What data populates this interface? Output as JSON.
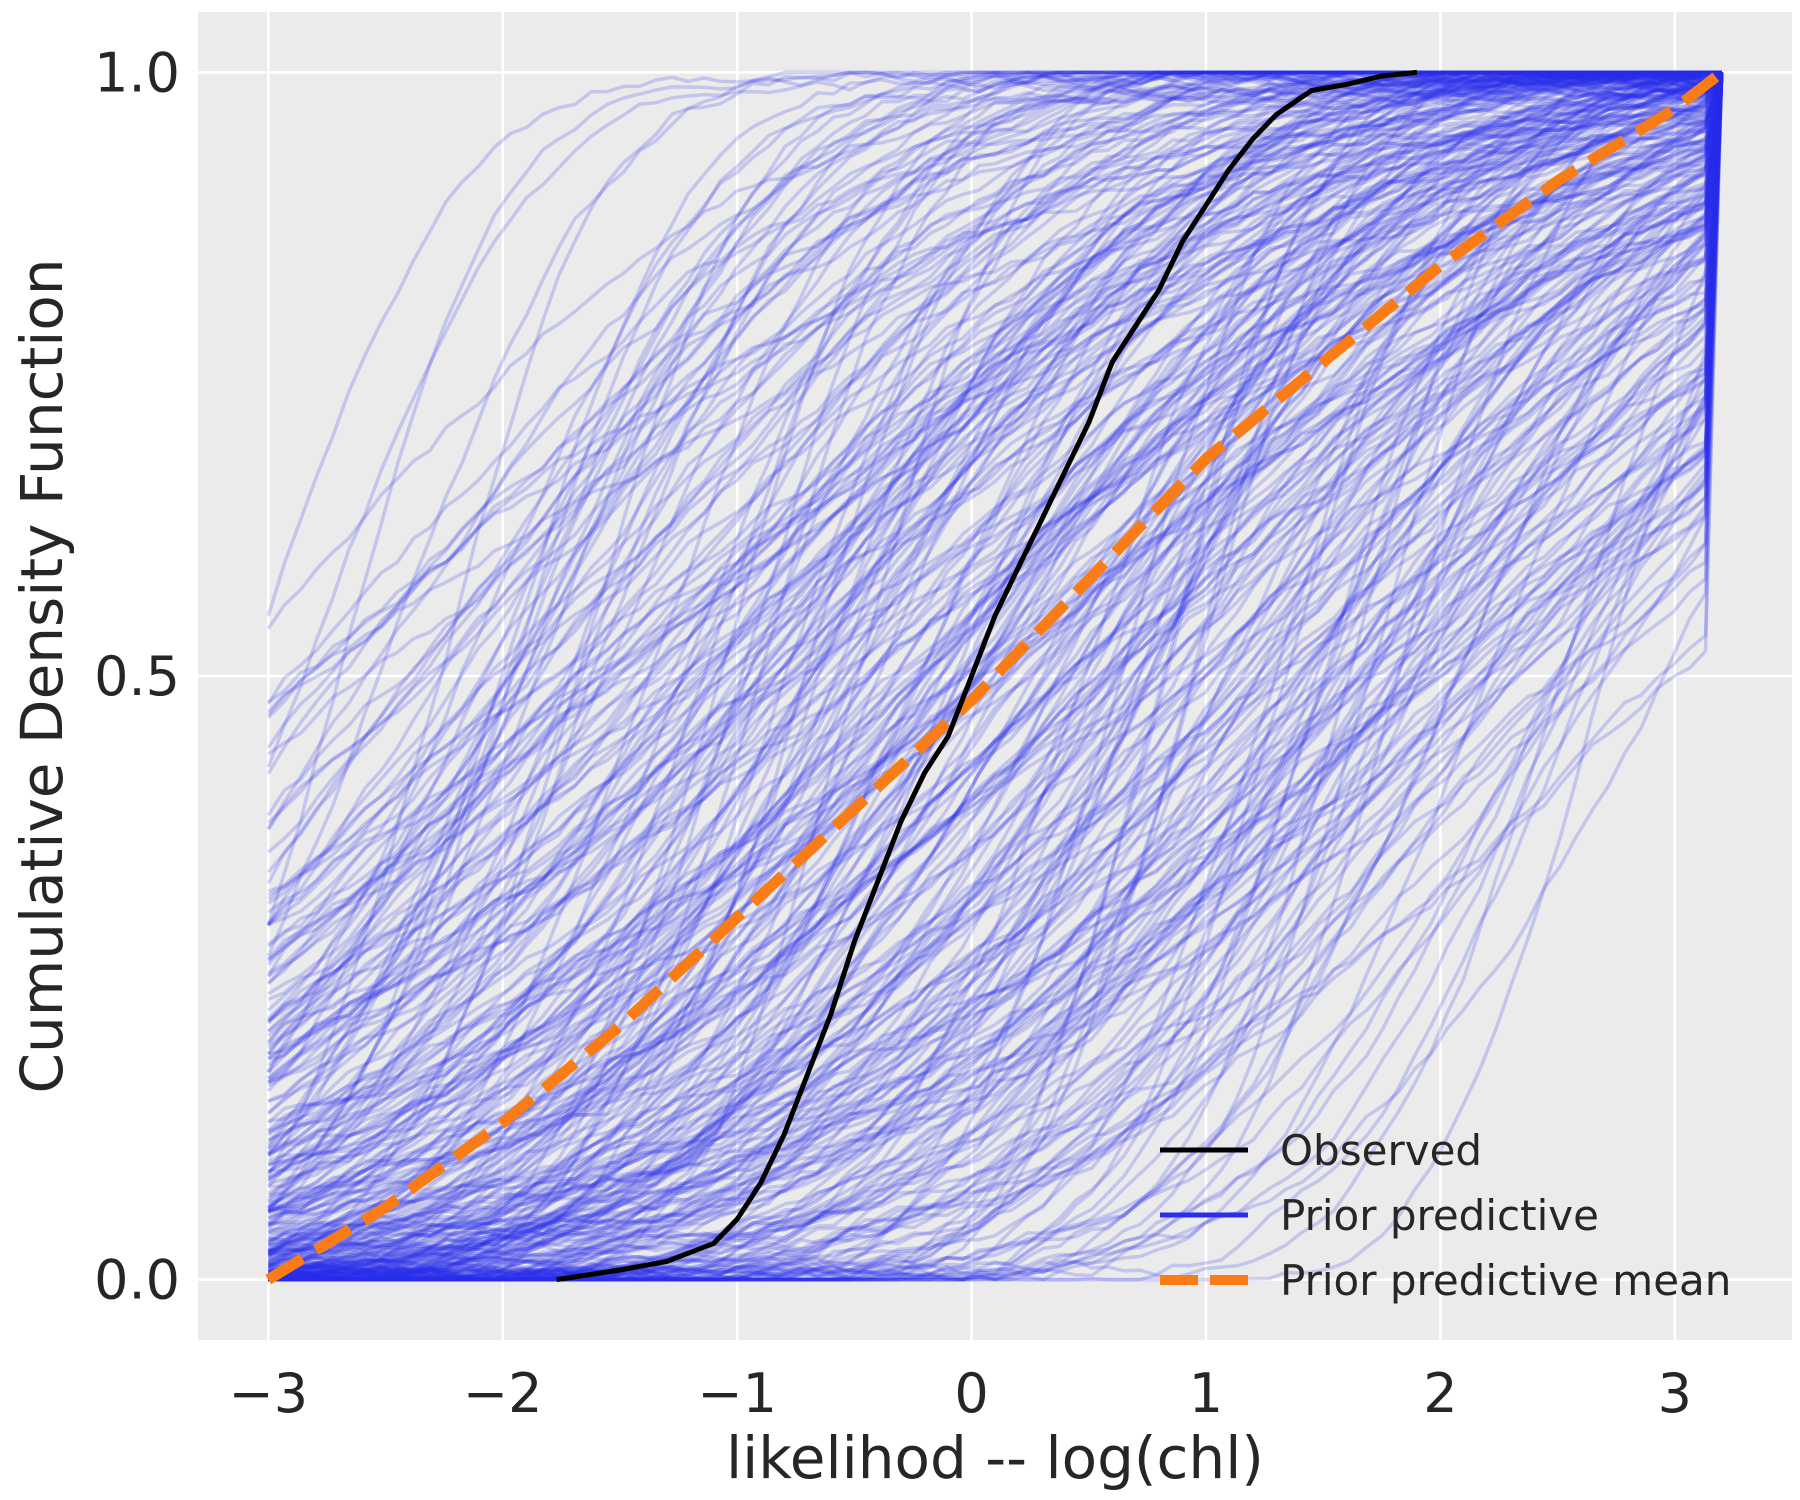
{
  "chart_data": {
    "type": "line",
    "xlabel": "likelihod -- log(chl)",
    "ylabel": "Cumulative Density Function",
    "xlim": [
      -3.3,
      3.5
    ],
    "ylim": [
      -0.05,
      1.05
    ],
    "x_ticks": [
      -3,
      -2,
      -1,
      0,
      1,
      2,
      3
    ],
    "x_tick_labels": [
      "−3",
      "−2",
      "−1",
      "0",
      "1",
      "2",
      "3"
    ],
    "y_ticks": [
      0.0,
      0.5,
      1.0
    ],
    "y_tick_labels": [
      "0.0",
      "0.5",
      "1.0"
    ],
    "grid": true,
    "background": "#ebebeb",
    "legend": {
      "position": "bottom-right",
      "entries": [
        {
          "label": "Observed",
          "color": "#000000",
          "style": "solid"
        },
        {
          "label": "Prior predictive",
          "color": "#2a2eec",
          "style": "solid"
        },
        {
          "label": "Prior predictive mean",
          "color": "#fa7c17",
          "style": "dashed"
        }
      ]
    },
    "series": [
      {
        "name": "Observed",
        "color": "#000000",
        "style": "solid",
        "x": [
          -1.77,
          -1.5,
          -1.3,
          -1.1,
          -1.0,
          -0.9,
          -0.8,
          -0.7,
          -0.6,
          -0.5,
          -0.4,
          -0.3,
          -0.2,
          -0.1,
          0.0,
          0.1,
          0.2,
          0.3,
          0.4,
          0.5,
          0.6,
          0.7,
          0.8,
          0.9,
          1.0,
          1.1,
          1.2,
          1.3,
          1.45,
          1.6,
          1.75,
          1.9
        ],
        "y": [
          0.0,
          0.008,
          0.015,
          0.03,
          0.05,
          0.08,
          0.12,
          0.17,
          0.22,
          0.28,
          0.33,
          0.38,
          0.42,
          0.45,
          0.5,
          0.55,
          0.59,
          0.63,
          0.67,
          0.71,
          0.76,
          0.79,
          0.82,
          0.86,
          0.89,
          0.92,
          0.945,
          0.965,
          0.985,
          0.99,
          0.997,
          1.0
        ]
      },
      {
        "name": "Prior predictive mean",
        "color": "#fa7c17",
        "style": "dashed",
        "x": [
          -3.0,
          -2.5,
          -2.0,
          -1.5,
          -1.0,
          -0.5,
          0.0,
          0.5,
          1.0,
          1.5,
          2.0,
          2.5,
          3.0,
          3.2
        ],
        "y": [
          0.0,
          0.06,
          0.13,
          0.21,
          0.3,
          0.39,
          0.48,
          0.58,
          0.68,
          0.76,
          0.84,
          0.91,
          0.97,
          1.0
        ]
      },
      {
        "name": "Prior predictive",
        "color": "#2a2eec",
        "style": "solid",
        "note_count": "many",
        "x_range": [
          -3.0,
          3.2
        ],
        "y_range": [
          0.0,
          1.0
        ]
      }
    ]
  }
}
